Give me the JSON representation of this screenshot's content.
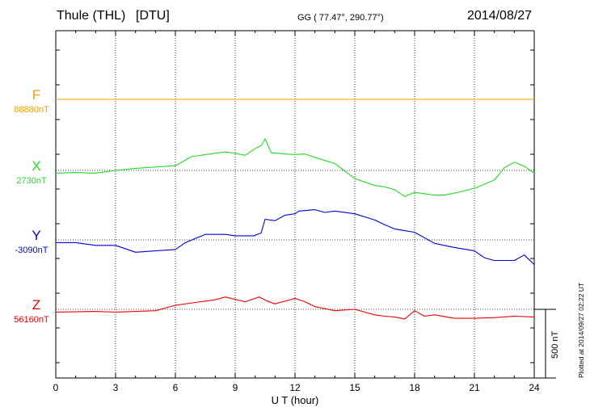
{
  "header": {
    "station": "Thule (THL)",
    "source": "[DTU]",
    "coords": "GG ( 77.47°, 290.77°)",
    "date": "2014/08/27"
  },
  "footer": {
    "xlabel": "U T (hour)",
    "plotted": "Plotted at 2014/09/27 02:22 UT",
    "scale": "500 nT"
  },
  "chart_data": {
    "type": "line",
    "title": "Thule (THL)  [DTU]",
    "xlabel": "U T (hour)",
    "xlim": [
      0,
      24
    ],
    "x_ticks": [
      0,
      3,
      6,
      9,
      12,
      15,
      18,
      21,
      24
    ],
    "scale_nT_per_bar": 500,
    "grid": true,
    "series": [
      {
        "name": "F",
        "baseline": "88880nT",
        "baseline_nT": 88880,
        "color": "#f5a000",
        "points": [
          [
            0,
            0
          ],
          [
            24,
            0
          ]
        ]
      },
      {
        "name": "X",
        "baseline": "2730nT",
        "baseline_nT": 2730,
        "color": "#22dd22",
        "points": [
          [
            0,
            -20
          ],
          [
            1,
            -15
          ],
          [
            2,
            -20
          ],
          [
            3,
            0
          ],
          [
            4,
            15
          ],
          [
            5,
            25
          ],
          [
            6,
            35
          ],
          [
            6.8,
            100
          ],
          [
            7.5,
            115
          ],
          [
            8.5,
            135
          ],
          [
            9,
            125
          ],
          [
            9.5,
            110
          ],
          [
            10,
            160
          ],
          [
            10.3,
            180
          ],
          [
            10.5,
            230
          ],
          [
            10.8,
            130
          ],
          [
            11.5,
            120
          ],
          [
            12,
            115
          ],
          [
            12.5,
            120
          ],
          [
            13,
            95
          ],
          [
            14,
            50
          ],
          [
            15,
            -60
          ],
          [
            16,
            -110
          ],
          [
            16.5,
            -120
          ],
          [
            17,
            -140
          ],
          [
            17.5,
            -190
          ],
          [
            18,
            -160
          ],
          [
            19,
            -180
          ],
          [
            19.5,
            -180
          ],
          [
            20,
            -165
          ],
          [
            21,
            -130
          ],
          [
            22,
            -70
          ],
          [
            22.5,
            20
          ],
          [
            23,
            60
          ],
          [
            23.5,
            30
          ],
          [
            24,
            -20
          ]
        ]
      },
      {
        "name": "Y",
        "baseline": "-3090nT",
        "baseline_nT": -3090,
        "color": "#0000dd",
        "points": [
          [
            0,
            -20
          ],
          [
            1,
            -20
          ],
          [
            2,
            -40
          ],
          [
            3,
            -40
          ],
          [
            4,
            -90
          ],
          [
            5,
            -80
          ],
          [
            6,
            -70
          ],
          [
            6.5,
            -20
          ],
          [
            7.5,
            40
          ],
          [
            8.5,
            40
          ],
          [
            9,
            30
          ],
          [
            10,
            30
          ],
          [
            10,
            35
          ],
          [
            10.3,
            50
          ],
          [
            10.5,
            150
          ],
          [
            11,
            140
          ],
          [
            11.5,
            180
          ],
          [
            12,
            190
          ],
          [
            12.2,
            210
          ],
          [
            13,
            220
          ],
          [
            13.5,
            200
          ],
          [
            14,
            210
          ],
          [
            15,
            190
          ],
          [
            16,
            145
          ],
          [
            16.5,
            110
          ],
          [
            17,
            80
          ],
          [
            18,
            55
          ],
          [
            19,
            -25
          ],
          [
            20,
            -55
          ],
          [
            21,
            -80
          ],
          [
            21.5,
            -130
          ],
          [
            22,
            -150
          ],
          [
            23,
            -150
          ],
          [
            23.5,
            -110
          ],
          [
            24,
            -180
          ]
        ]
      },
      {
        "name": "Z",
        "baseline": "56160nT",
        "baseline_nT": 56160,
        "color": "#ee0000",
        "points": [
          [
            0,
            -20
          ],
          [
            2,
            -15
          ],
          [
            3,
            -20
          ],
          [
            4,
            -15
          ],
          [
            5,
            -10
          ],
          [
            6,
            30
          ],
          [
            7,
            50
          ],
          [
            8,
            70
          ],
          [
            8.5,
            90
          ],
          [
            9.5,
            55
          ],
          [
            10.2,
            90
          ],
          [
            10.6,
            60
          ],
          [
            11,
            40
          ],
          [
            12,
            80
          ],
          [
            12.5,
            55
          ],
          [
            13,
            20
          ],
          [
            14,
            -10
          ],
          [
            15,
            0
          ],
          [
            16,
            -40
          ],
          [
            16.5,
            -50
          ],
          [
            17,
            -55
          ],
          [
            17.5,
            -70
          ],
          [
            18,
            -10
          ],
          [
            18.5,
            -50
          ],
          [
            19,
            -40
          ],
          [
            20,
            -65
          ],
          [
            21,
            -65
          ],
          [
            22,
            -60
          ],
          [
            23,
            -50
          ],
          [
            24,
            -55
          ]
        ]
      }
    ]
  }
}
